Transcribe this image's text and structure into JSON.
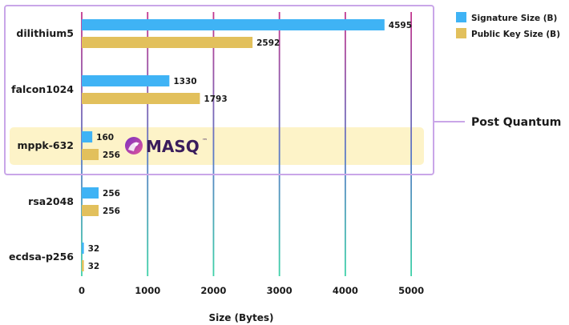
{
  "chart_data": {
    "type": "bar",
    "orientation": "horizontal",
    "categories": [
      "dilithium5",
      "falcon1024",
      "mppk-632",
      "rsa2048",
      "ecdsa-p256"
    ],
    "series": [
      {
        "name": "Signature Size (B)",
        "color": "#3fb3f5",
        "values": [
          4595,
          1330,
          160,
          256,
          32
        ]
      },
      {
        "name": "Public Key Size (B)",
        "color": "#e2c05c",
        "values": [
          2592,
          1793,
          256,
          256,
          32
        ]
      }
    ],
    "xlabel": "Size (Bytes)",
    "ylabel": "",
    "xlim": [
      0,
      5000
    ],
    "xticks": [
      0,
      1000,
      2000,
      3000,
      4000,
      5000
    ],
    "grid": true,
    "legend_position": "top-right",
    "highlighted_category": "mppk-632",
    "highlight_color": "#fdf3c8",
    "group_box": {
      "label": "Post Quantum",
      "categories": [
        "dilithium5",
        "falcon1024",
        "mppk-632"
      ],
      "color": "#c9a6e8"
    },
    "logo": {
      "text": "MASQ",
      "mark": "™",
      "colors": [
        "#7a2fc2",
        "#e0559b"
      ]
    }
  }
}
